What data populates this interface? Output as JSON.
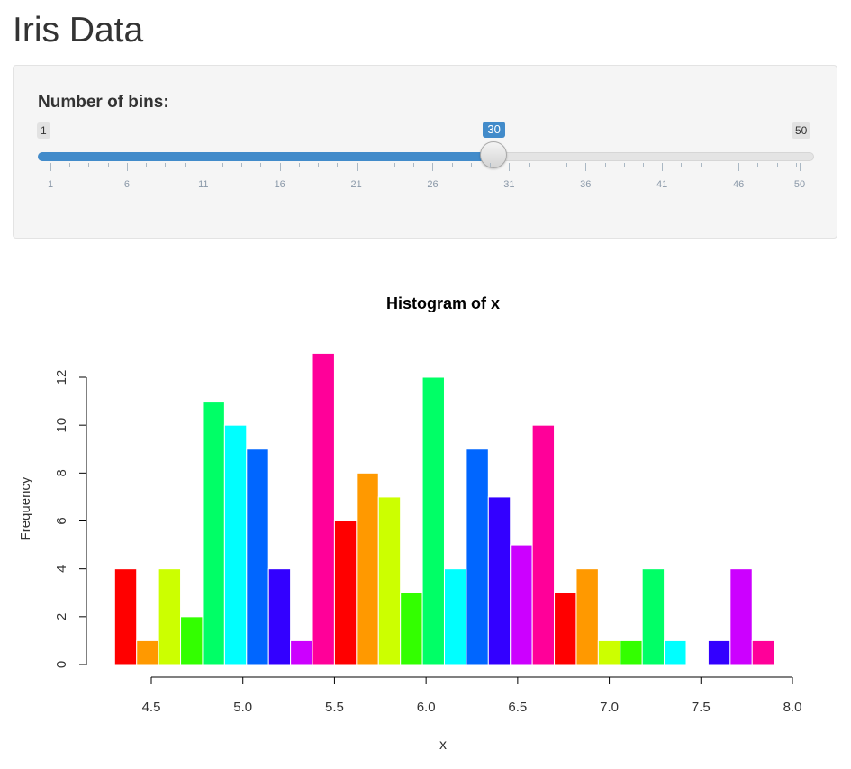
{
  "page": {
    "title": "Iris Data"
  },
  "slider": {
    "label": "Number of bins:",
    "min": 1,
    "max": 50,
    "value": 30,
    "min_label": "1",
    "max_label": "50",
    "value_label": "30",
    "grid_labels": [
      "1",
      "6",
      "11",
      "16",
      "21",
      "26",
      "31",
      "36",
      "41",
      "46",
      "50"
    ],
    "accent_color": "#428bca"
  },
  "chart_data": {
    "type": "bar",
    "title": "Histogram of x",
    "xlabel": "x",
    "ylabel": "Frequency",
    "bin_width": 0.12,
    "bins": [
      {
        "start": 4.3,
        "count": 4
      },
      {
        "start": 4.42,
        "count": 1
      },
      {
        "start": 4.54,
        "count": 4
      },
      {
        "start": 4.66,
        "count": 2
      },
      {
        "start": 4.78,
        "count": 11
      },
      {
        "start": 4.9,
        "count": 10
      },
      {
        "start": 5.02,
        "count": 9
      },
      {
        "start": 5.14,
        "count": 4
      },
      {
        "start": 5.26,
        "count": 1
      },
      {
        "start": 5.38,
        "count": 13
      },
      {
        "start": 5.5,
        "count": 6
      },
      {
        "start": 5.62,
        "count": 8
      },
      {
        "start": 5.74,
        "count": 7
      },
      {
        "start": 5.86,
        "count": 3
      },
      {
        "start": 5.98,
        "count": 12
      },
      {
        "start": 6.1,
        "count": 4
      },
      {
        "start": 6.22,
        "count": 9
      },
      {
        "start": 6.34,
        "count": 7
      },
      {
        "start": 6.46,
        "count": 5
      },
      {
        "start": 6.58,
        "count": 10
      },
      {
        "start": 6.7,
        "count": 3
      },
      {
        "start": 6.82,
        "count": 4
      },
      {
        "start": 6.94,
        "count": 1
      },
      {
        "start": 7.06,
        "count": 1
      },
      {
        "start": 7.18,
        "count": 4
      },
      {
        "start": 7.3,
        "count": 1
      },
      {
        "start": 7.42,
        "count": 0
      },
      {
        "start": 7.54,
        "count": 1
      },
      {
        "start": 7.66,
        "count": 4
      },
      {
        "start": 7.78,
        "count": 1
      }
    ],
    "colors": [
      "#FF0000",
      "#FF9900",
      "#CCFF00",
      "#33FF00",
      "#00FF66",
      "#00FFFF",
      "#0066FF",
      "#3300FF",
      "#CC00FF",
      "#FF0099"
    ],
    "x_ticks": [
      "4.5",
      "5.0",
      "5.5",
      "6.0",
      "6.5",
      "7.0",
      "7.5",
      "8.0"
    ],
    "y_ticks": [
      "0",
      "2",
      "4",
      "6",
      "8",
      "10",
      "12"
    ],
    "xlim": [
      4.3,
      7.9
    ],
    "ylim": [
      0,
      13
    ]
  }
}
